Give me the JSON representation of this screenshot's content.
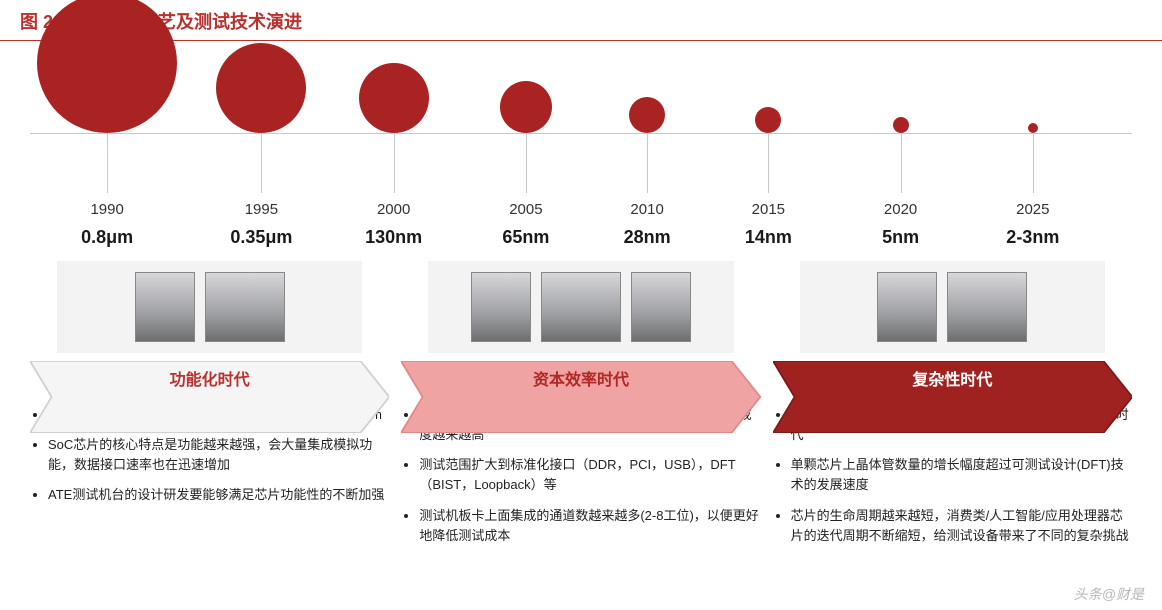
{
  "figure": {
    "label": "图 23：",
    "title": "半导体工艺及测试技术演进",
    "title_color": "#b8312f",
    "underline_color": "#b8312f",
    "background": "#ffffff"
  },
  "timeline": {
    "axis_color": "#c8c8c8",
    "bubble_color": "#a82321",
    "year_fontsize": 15,
    "proc_fontsize": 18,
    "nodes": [
      {
        "left_pct": 7,
        "year": "1990",
        "process": "0.8μm",
        "diam": 140
      },
      {
        "left_pct": 21,
        "year": "1995",
        "process": "0.35μm",
        "diam": 90
      },
      {
        "left_pct": 33,
        "year": "2000",
        "process": "130nm",
        "diam": 70
      },
      {
        "left_pct": 45,
        "year": "2005",
        "process": "65nm",
        "diam": 52
      },
      {
        "left_pct": 56,
        "year": "2010",
        "process": "28nm",
        "diam": 36
      },
      {
        "left_pct": 67,
        "year": "2015",
        "process": "14nm",
        "diam": 26
      },
      {
        "left_pct": 79,
        "year": "2020",
        "process": "5nm",
        "diam": 16
      },
      {
        "left_pct": 91,
        "year": "2025",
        "process": "2-3nm",
        "diam": 10
      }
    ]
  },
  "eras": [
    {
      "label": "功能化时代",
      "header_bg": "#f7f7f7",
      "header_border": "#d8d8d8",
      "label_color": "#b8312f",
      "arrow_fill": "#f5f5f5",
      "arrow_stroke": "#d0d0d0",
      "equipment_count": 2,
      "bullets": [
        "CMOS工艺蓬勃发展，工艺水平主要集中在0.35μm/130nm",
        "SoC芯片的核心特点是功能越来越强，会大量集成模拟功能，数据接口速率也在迅速增加",
        "ATE测试机台的设计研发要能够满足芯片功能性的不断加强"
      ]
    },
    {
      "label": "资本效率时代",
      "header_bg": "#f0a6a5",
      "header_border": "#e88b89",
      "label_color": "#b02724",
      "arrow_fill": "#efa4a3",
      "arrow_stroke": "#e38886",
      "equipment_count": 3,
      "bullets": [
        "工艺从130nm不断演进到14nm，芯片尺寸越来越小，集成度越来越高",
        "测试范围扩大到标准化接口（DDR，PCI，USB），DFT（BIST，Loopback）等",
        "测试机板卡上面集成的通道数越来越多(2-8工位)，以便更好地降低测试成本"
      ]
    },
    {
      "label": "复杂性时代",
      "header_bg": "#a02220",
      "header_border": "#7d1917",
      "label_color": "#ffffff",
      "arrow_fill": "#a02220",
      "arrow_stroke": "#7d1917",
      "equipment_count": 2,
      "bullets": [
        "开始进入5nm时代，并很有可能在2025年全面进入2-3nm时代",
        "单颗芯片上晶体管数量的增长幅度超过可测试设计(DFT)技术的发展速度",
        "芯片的生命周期越来越短，消费类/人工智能/应用处理器芯片的迭代周期不断缩短，给测试设备带来了不同的复杂挑战"
      ]
    }
  ],
  "watermark": "头条@财是"
}
